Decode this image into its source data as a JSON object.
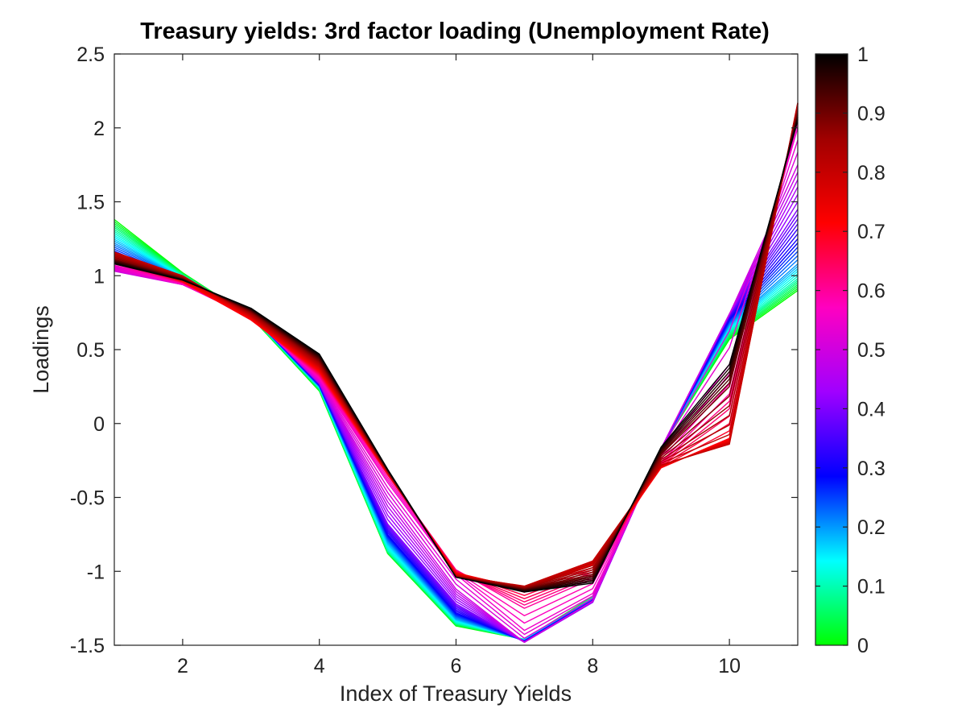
{
  "chart_data": {
    "type": "line",
    "title": "Treasury yields: 3rd factor loading (Unemployment Rate)",
    "xlabel": "Index of Treasury Yields",
    "ylabel": "Loadings",
    "xlim": [
      1,
      11
    ],
    "ylim": [
      -1.5,
      2.5
    ],
    "x": [
      1,
      2,
      3,
      4,
      5,
      6,
      7,
      8,
      9,
      10,
      11
    ],
    "xticks": [
      "2",
      "4",
      "6",
      "8",
      "10"
    ],
    "yticks": [
      "-1.5",
      "-1",
      "-0.5",
      "0",
      "0.5",
      "1",
      "1.5",
      "2",
      "2.5"
    ],
    "grid": false,
    "colorbar": {
      "range": [
        0,
        1
      ],
      "ticks": [
        "0",
        "0.1",
        "0.2",
        "0.3",
        "0.4",
        "0.5",
        "0.6",
        "0.7",
        "0.8",
        "0.9",
        "1"
      ],
      "colormap": [
        "#00ff00",
        "#00ffff",
        "#0000ff",
        "#a000ff",
        "#ff00c0",
        "#ff0000",
        "#a00000",
        "#000000"
      ]
    },
    "series_by_level": [
      {
        "level": 0.0,
        "values": [
          1.38,
          1.02,
          0.72,
          0.22,
          -0.88,
          -1.37,
          -1.46,
          -1.17,
          -0.17,
          0.57,
          0.9
        ]
      },
      {
        "level": 0.1,
        "values": [
          1.3,
          1.0,
          0.73,
          0.24,
          -0.86,
          -1.35,
          -1.46,
          -1.18,
          -0.17,
          0.62,
          0.98
        ]
      },
      {
        "level": 0.2,
        "values": [
          1.22,
          0.98,
          0.73,
          0.25,
          -0.8,
          -1.32,
          -1.47,
          -1.19,
          -0.17,
          0.67,
          1.08
        ]
      },
      {
        "level": 0.3,
        "values": [
          1.14,
          0.96,
          0.74,
          0.26,
          -0.75,
          -1.28,
          -1.47,
          -1.2,
          -0.17,
          0.71,
          1.25
        ]
      },
      {
        "level": 0.4,
        "values": [
          1.07,
          0.95,
          0.74,
          0.27,
          -0.68,
          -1.22,
          -1.48,
          -1.21,
          -0.17,
          0.74,
          1.45
        ]
      },
      {
        "level": 0.5,
        "values": [
          1.03,
          0.94,
          0.73,
          0.28,
          -0.5,
          -1.12,
          -1.48,
          -1.2,
          -0.17,
          0.74,
          1.75
        ]
      },
      {
        "level": 0.55,
        "values": [
          1.05,
          0.94,
          0.72,
          0.3,
          -0.4,
          -1.02,
          -1.4,
          -1.15,
          -0.2,
          0.4,
          2.0
        ]
      },
      {
        "level": 0.6,
        "values": [
          1.08,
          0.95,
          0.71,
          0.32,
          -0.35,
          -0.99,
          -1.25,
          -1.05,
          -0.26,
          0.2,
          2.1
        ]
      },
      {
        "level": 0.7,
        "values": [
          1.12,
          0.96,
          0.7,
          0.35,
          -0.34,
          -1.01,
          -1.12,
          -0.96,
          -0.3,
          -0.1,
          2.16
        ]
      },
      {
        "level": 0.8,
        "values": [
          1.16,
          1.0,
          0.73,
          0.39,
          -0.33,
          -1.03,
          -1.1,
          -0.93,
          -0.28,
          -0.14,
          2.17
        ]
      },
      {
        "level": 0.9,
        "values": [
          1.11,
          0.98,
          0.76,
          0.43,
          -0.32,
          -1.04,
          -1.12,
          -1.02,
          -0.21,
          0.25,
          2.1
        ]
      },
      {
        "level": 1.0,
        "values": [
          1.08,
          0.97,
          0.78,
          0.47,
          -0.31,
          -1.04,
          -1.14,
          -1.08,
          -0.16,
          0.4,
          2.05
        ]
      }
    ]
  }
}
